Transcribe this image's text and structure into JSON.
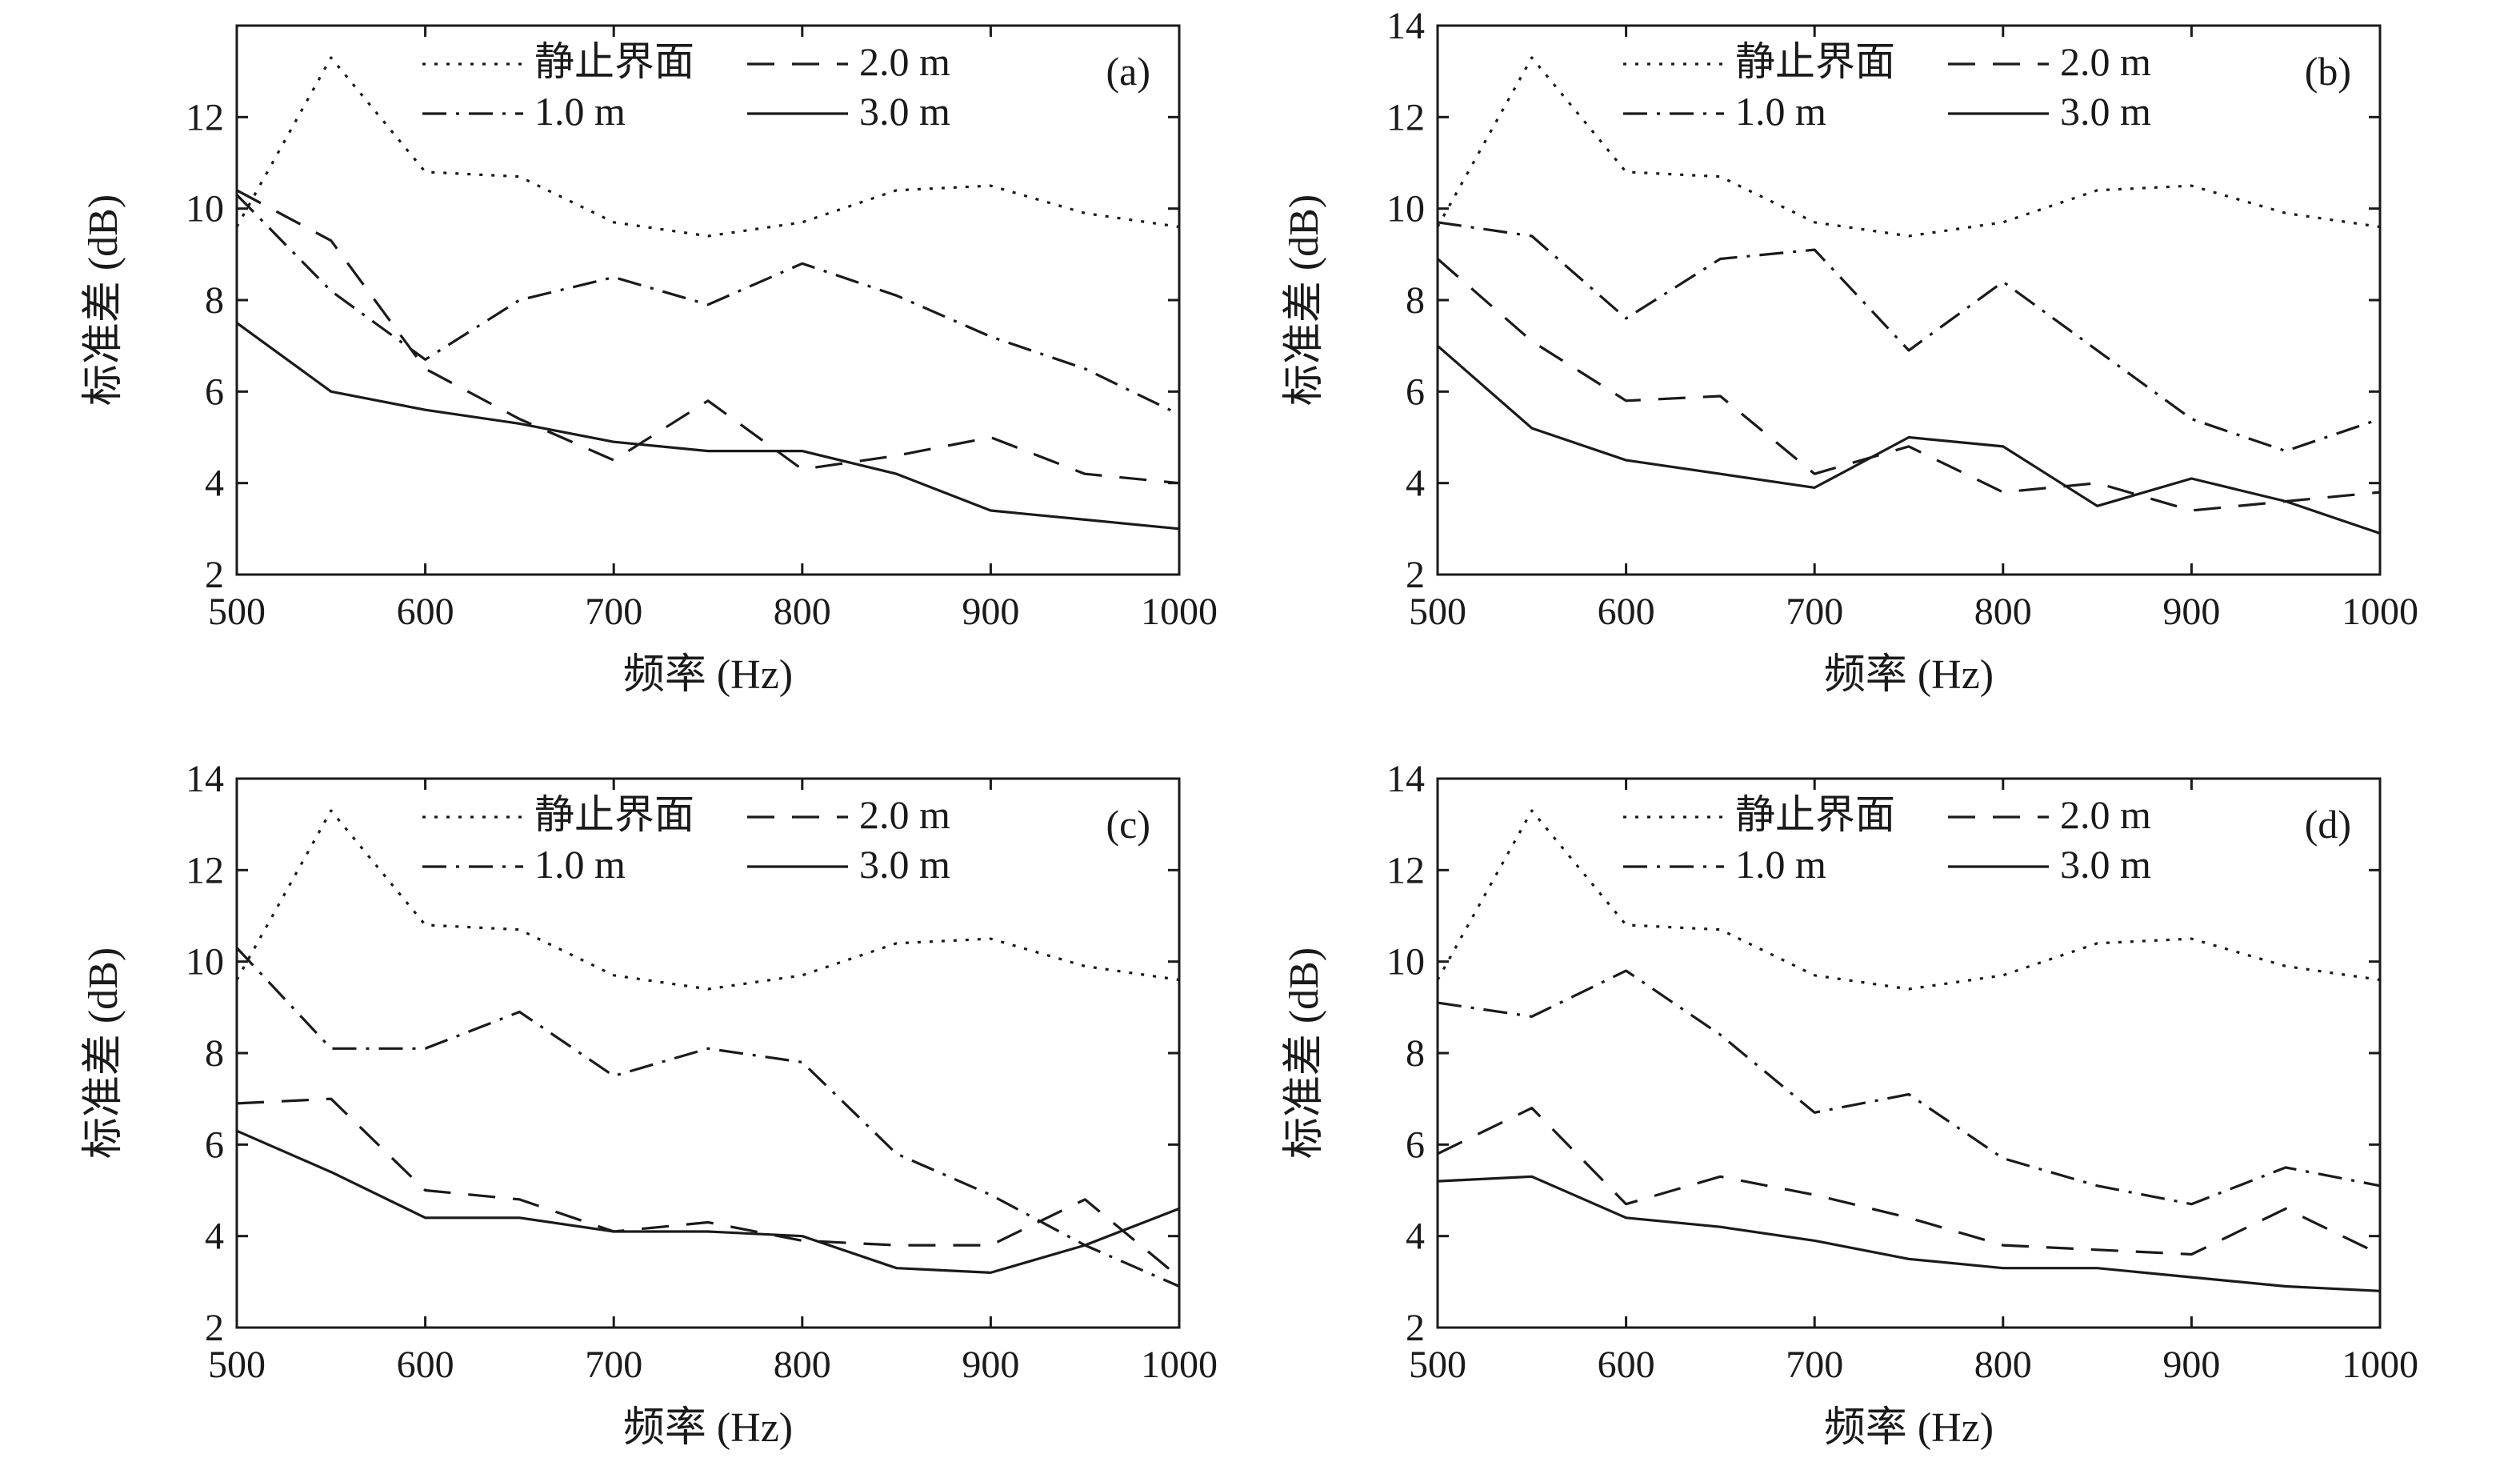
{
  "figure": {
    "xlabel": "频率 (Hz)",
    "ylabel": "标准差 (dB)"
  },
  "series_styles": [
    {
      "name": "静止界面",
      "dash": "dotted"
    },
    {
      "name": "1.0 m",
      "dash": "dashdot"
    },
    {
      "name": "2.0 m",
      "dash": "dashed"
    },
    {
      "name": "3.0 m",
      "dash": "solid"
    }
  ],
  "chart_data": [
    {
      "type": "line",
      "panel": "(a)",
      "xlabel": "频率 (Hz)",
      "ylabel": "标准差 (dB)",
      "xlim": [
        500,
        1000
      ],
      "ylim": [
        2,
        14
      ],
      "xticks": [
        "500",
        "600",
        "700",
        "800",
        "900",
        "1000"
      ],
      "yticks": [
        "2",
        "4",
        "6",
        "8",
        "10",
        "12"
      ],
      "x": [
        500,
        550,
        600,
        650,
        700,
        750,
        800,
        850,
        900,
        950,
        1000
      ],
      "series": [
        {
          "name": "静止界面",
          "values": [
            9.6,
            13.3,
            10.8,
            10.7,
            9.7,
            9.4,
            9.7,
            10.4,
            10.5,
            9.9,
            9.6
          ]
        },
        {
          "name": "1.0 m",
          "values": [
            10.3,
            8.2,
            6.7,
            8.0,
            8.5,
            7.9,
            8.8,
            8.1,
            7.2,
            6.5,
            5.5
          ]
        },
        {
          "name": "2.0 m",
          "values": [
            10.4,
            9.3,
            6.5,
            5.4,
            4.5,
            5.8,
            4.3,
            4.6,
            5.0,
            4.2,
            4.0
          ]
        },
        {
          "name": "3.0 m",
          "values": [
            7.5,
            6.0,
            5.6,
            5.3,
            4.9,
            4.7,
            4.7,
            4.2,
            3.4,
            3.2,
            3.0
          ]
        }
      ]
    },
    {
      "type": "line",
      "panel": "(b)",
      "xlabel": "频率 (Hz)",
      "ylabel": "标准差 (dB)",
      "xlim": [
        500,
        1000
      ],
      "ylim": [
        2,
        14
      ],
      "xticks": [
        "500",
        "600",
        "700",
        "800",
        "900",
        "1000"
      ],
      "yticks": [
        "2",
        "4",
        "6",
        "8",
        "10",
        "12",
        "14"
      ],
      "x": [
        500,
        550,
        600,
        650,
        700,
        750,
        800,
        850,
        900,
        950,
        1000
      ],
      "series": [
        {
          "name": "静止界面",
          "values": [
            9.6,
            13.3,
            10.8,
            10.7,
            9.7,
            9.4,
            9.7,
            10.4,
            10.5,
            9.9,
            9.6
          ]
        },
        {
          "name": "1.0 m",
          "values": [
            9.7,
            9.4,
            7.6,
            8.9,
            9.1,
            6.9,
            8.4,
            6.9,
            5.4,
            4.7,
            5.4
          ]
        },
        {
          "name": "2.0 m",
          "values": [
            8.9,
            7.1,
            5.8,
            5.9,
            4.2,
            4.8,
            3.8,
            4.0,
            3.4,
            3.6,
            3.8
          ]
        },
        {
          "name": "3.0 m",
          "values": [
            7.0,
            5.2,
            4.5,
            4.2,
            3.9,
            5.0,
            4.8,
            3.5,
            4.1,
            3.6,
            2.9
          ]
        }
      ]
    },
    {
      "type": "line",
      "panel": "(c)",
      "xlabel": "频率 (Hz)",
      "ylabel": "标准差 (dB)",
      "xlim": [
        500,
        1000
      ],
      "ylim": [
        2,
        14
      ],
      "xticks": [
        "500",
        "600",
        "700",
        "800",
        "900",
        "1000"
      ],
      "yticks": [
        "2",
        "4",
        "6",
        "8",
        "10",
        "12",
        "14"
      ],
      "x": [
        500,
        550,
        600,
        650,
        700,
        750,
        800,
        850,
        900,
        950,
        1000
      ],
      "series": [
        {
          "name": "静止界面",
          "values": [
            9.6,
            13.3,
            10.8,
            10.7,
            9.7,
            9.4,
            9.7,
            10.4,
            10.5,
            9.9,
            9.6
          ]
        },
        {
          "name": "1.0 m",
          "values": [
            10.3,
            8.1,
            8.1,
            8.9,
            7.5,
            8.1,
            7.8,
            5.8,
            4.9,
            3.8,
            2.9
          ]
        },
        {
          "name": "2.0 m",
          "values": [
            6.9,
            7.0,
            5.0,
            4.8,
            4.1,
            4.3,
            3.9,
            3.8,
            3.8,
            4.8,
            3.1
          ]
        },
        {
          "name": "3.0 m",
          "values": [
            6.3,
            5.4,
            4.4,
            4.4,
            4.1,
            4.1,
            4.0,
            3.3,
            3.2,
            3.8,
            4.6
          ]
        }
      ]
    },
    {
      "type": "line",
      "panel": "(d)",
      "xlabel": "频率 (Hz)",
      "ylabel": "标准差 (dB)",
      "xlim": [
        500,
        1000
      ],
      "ylim": [
        2,
        14
      ],
      "xticks": [
        "500",
        "600",
        "700",
        "800",
        "900",
        "1000"
      ],
      "yticks": [
        "2",
        "4",
        "6",
        "8",
        "10",
        "12",
        "14"
      ],
      "x": [
        500,
        550,
        600,
        650,
        700,
        750,
        800,
        850,
        900,
        950,
        1000
      ],
      "series": [
        {
          "name": "静止界面",
          "values": [
            9.6,
            13.3,
            10.8,
            10.7,
            9.7,
            9.4,
            9.7,
            10.4,
            10.5,
            9.9,
            9.6
          ]
        },
        {
          "name": "1.0 m",
          "values": [
            9.1,
            8.8,
            9.8,
            8.4,
            6.7,
            7.1,
            5.7,
            5.1,
            4.7,
            5.5,
            5.1
          ]
        },
        {
          "name": "2.0 m",
          "values": [
            5.8,
            6.8,
            4.7,
            5.3,
            4.9,
            4.4,
            3.8,
            3.7,
            3.6,
            4.6,
            3.6
          ]
        },
        {
          "name": "3.0 m",
          "values": [
            5.2,
            5.3,
            4.4,
            4.2,
            3.9,
            3.5,
            3.3,
            3.3,
            3.1,
            2.9,
            2.8
          ]
        }
      ]
    }
  ]
}
